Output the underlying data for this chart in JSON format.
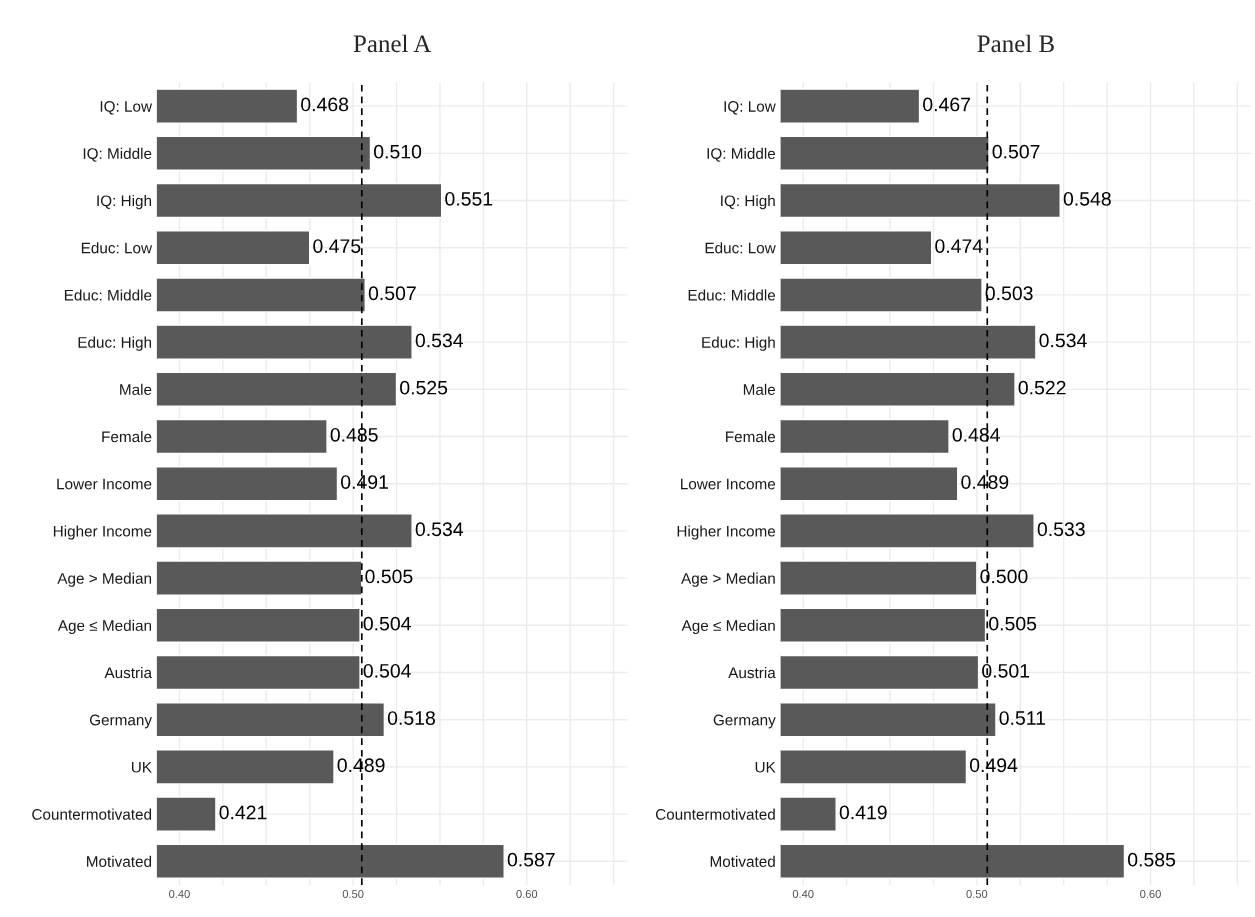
{
  "chart_data": [
    {
      "type": "bar",
      "orientation": "horizontal",
      "title": "Panel A",
      "categories": [
        "IQ: Low",
        "IQ: Middle",
        "IQ: High",
        "Educ: Low",
        "Educ: Middle",
        "Educ: High",
        "Male",
        "Female",
        "Lower Income",
        "Higher Income",
        "Age > Median",
        "Age ≤ Median",
        "Austria",
        "Germany",
        "UK",
        "Countermotivated",
        "Motivated"
      ],
      "values": [
        0.468,
        0.51,
        0.551,
        0.475,
        0.507,
        0.534,
        0.525,
        0.485,
        0.491,
        0.534,
        0.505,
        0.504,
        0.504,
        0.518,
        0.489,
        0.421,
        0.587
      ],
      "value_labels": [
        "0.468",
        "0.510",
        "0.551",
        "0.475",
        "0.507",
        "0.534",
        "0.525",
        "0.485",
        "0.491",
        "0.534",
        "0.505",
        "0.504",
        "0.504",
        "0.518",
        "0.489",
        "0.421",
        "0.587"
      ],
      "color": "#595959",
      "xlim": [
        0.387,
        0.658
      ],
      "xticks": [
        {
          "value": 0.4,
          "label": "0.40"
        },
        {
          "value": 0.425,
          "label": null
        },
        {
          "value": 0.45,
          "label": null
        },
        {
          "value": 0.475,
          "label": null
        },
        {
          "value": 0.5,
          "label": "0.50"
        },
        {
          "value": 0.525,
          "label": null
        },
        {
          "value": 0.55,
          "label": null
        },
        {
          "value": 0.575,
          "label": null
        },
        {
          "value": 0.6,
          "label": "0.60"
        },
        {
          "value": 0.625,
          "label": null
        },
        {
          "value": 0.65,
          "label": null
        }
      ],
      "ref_lines": [
        {
          "axis": "x",
          "value": 0.505,
          "line_style": "dashed",
          "color": "#000000"
        }
      ],
      "grid": true
    },
    {
      "type": "bar",
      "orientation": "horizontal",
      "title": "Panel B",
      "categories": [
        "IQ: Low",
        "IQ: Middle",
        "IQ: High",
        "Educ: Low",
        "Educ: Middle",
        "Educ: High",
        "Male",
        "Female",
        "Lower Income",
        "Higher Income",
        "Age > Median",
        "Age ≤ Median",
        "Austria",
        "Germany",
        "UK",
        "Countermotivated",
        "Motivated"
      ],
      "values": [
        0.467,
        0.507,
        0.548,
        0.474,
        0.503,
        0.534,
        0.522,
        0.484,
        0.489,
        0.533,
        0.5,
        0.505,
        0.501,
        0.511,
        0.494,
        0.419,
        0.585
      ],
      "value_labels": [
        "0.467",
        "0.507",
        "0.548",
        "0.474",
        "0.503",
        "0.534",
        "0.522",
        "0.484",
        "0.489",
        "0.533",
        "0.500",
        "0.505",
        "0.501",
        "0.511",
        "0.494",
        "0.419",
        "0.585"
      ],
      "color": "#595959",
      "xlim": [
        0.387,
        0.658
      ],
      "xticks": [
        {
          "value": 0.4,
          "label": "0.40"
        },
        {
          "value": 0.425,
          "label": null
        },
        {
          "value": 0.45,
          "label": null
        },
        {
          "value": 0.475,
          "label": null
        },
        {
          "value": 0.5,
          "label": "0.50"
        },
        {
          "value": 0.525,
          "label": null
        },
        {
          "value": 0.55,
          "label": null
        },
        {
          "value": 0.575,
          "label": null
        },
        {
          "value": 0.6,
          "label": "0.60"
        },
        {
          "value": 0.625,
          "label": null
        },
        {
          "value": 0.65,
          "label": null
        }
      ],
      "ref_lines": [
        {
          "axis": "x",
          "value": 0.506,
          "line_style": "dashed",
          "color": "#000000"
        }
      ],
      "grid": true
    }
  ]
}
